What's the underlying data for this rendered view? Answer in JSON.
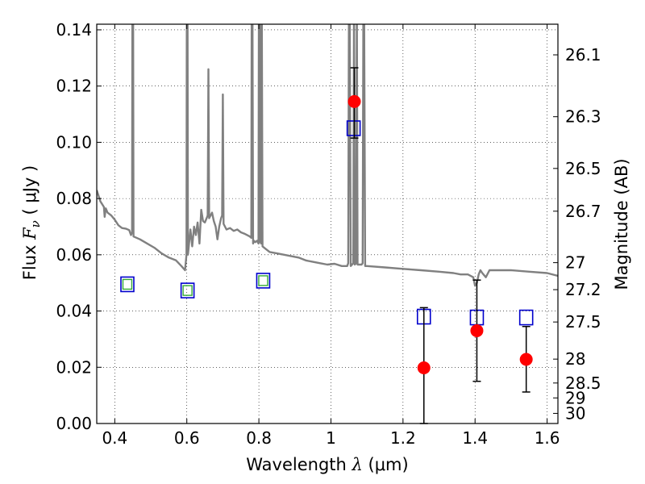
{
  "chart_data": {
    "type": "scatter",
    "title": "",
    "xlabel": {
      "prefix": "Wavelength  ",
      "symbol": "λ",
      "unit": " (μm)"
    },
    "ylabel": {
      "prefix": "Flux  ",
      "symbol": "F",
      "subscript": "ν",
      "unit": "  ( μJy )"
    },
    "y2label": "Magnitude (AB)",
    "xlim": [
      0.35,
      1.63
    ],
    "ylim": [
      0.0,
      0.142
    ],
    "grid": true,
    "x_ticks": [
      0.4,
      0.6,
      0.8,
      1.0,
      1.2,
      1.4,
      1.6
    ],
    "x_tick_labels": [
      "0.4",
      "0.6",
      "0.8",
      "1",
      "1.2",
      "1.4",
      "1.6"
    ],
    "y_ticks": [
      0.0,
      0.02,
      0.04,
      0.06,
      0.08,
      0.1,
      0.12,
      0.14
    ],
    "y_tick_labels": [
      "0.00",
      "0.02",
      "0.04",
      "0.06",
      "0.08",
      "0.10",
      "0.12",
      "0.14"
    ],
    "y2_ticks": [
      {
        "label": "26.1",
        "flux": 0.1311
      },
      {
        "label": "26.3",
        "flux": 0.1091
      },
      {
        "label": "26.5",
        "flux": 0.0907
      },
      {
        "label": "26.7",
        "flux": 0.0755
      },
      {
        "label": "27",
        "flux": 0.0572
      },
      {
        "label": "27.2",
        "flux": 0.0476
      },
      {
        "label": "27.5",
        "flux": 0.0361
      },
      {
        "label": "28",
        "flux": 0.0229
      },
      {
        "label": "28.5",
        "flux": 0.0144
      },
      {
        "label": "29",
        "flux": 0.0091
      },
      {
        "label": "30",
        "flux": 0.0036
      }
    ],
    "series": [
      {
        "kind": "line",
        "color": "#808080",
        "points": [
          [
            0.35,
            0.083
          ],
          [
            0.36,
            0.079
          ],
          [
            0.37,
            0.077
          ],
          [
            0.372,
            0.0735
          ],
          [
            0.375,
            0.0765
          ],
          [
            0.38,
            0.075
          ],
          [
            0.39,
            0.074
          ],
          [
            0.4,
            0.0725
          ],
          [
            0.41,
            0.0705
          ],
          [
            0.42,
            0.0695
          ],
          [
            0.43,
            0.0693
          ],
          [
            0.44,
            0.0688
          ],
          [
            0.445,
            0.067
          ],
          [
            0.448,
            0.068
          ],
          [
            0.449,
            0.15
          ],
          [
            0.451,
            0.15
          ],
          [
            0.452,
            0.0665
          ],
          [
            0.47,
            0.0655
          ],
          [
            0.49,
            0.064
          ],
          [
            0.51,
            0.0625
          ],
          [
            0.53,
            0.0605
          ],
          [
            0.55,
            0.059
          ],
          [
            0.57,
            0.058
          ],
          [
            0.585,
            0.056
          ],
          [
            0.595,
            0.0545
          ],
          [
            0.599,
            0.06
          ],
          [
            0.6,
            0.15
          ],
          [
            0.602,
            0.15
          ],
          [
            0.603,
            0.06
          ],
          [
            0.61,
            0.069
          ],
          [
            0.615,
            0.063
          ],
          [
            0.62,
            0.07
          ],
          [
            0.625,
            0.067
          ],
          [
            0.63,
            0.0715
          ],
          [
            0.635,
            0.064
          ],
          [
            0.64,
            0.076
          ],
          [
            0.645,
            0.072
          ],
          [
            0.65,
            0.0715
          ],
          [
            0.655,
            0.073
          ],
          [
            0.658,
            0.074
          ],
          [
            0.66,
            0.126
          ],
          [
            0.662,
            0.073
          ],
          [
            0.67,
            0.075
          ],
          [
            0.675,
            0.072
          ],
          [
            0.68,
            0.07
          ],
          [
            0.685,
            0.0655
          ],
          [
            0.69,
            0.07
          ],
          [
            0.695,
            0.073
          ],
          [
            0.698,
            0.074
          ],
          [
            0.7,
            0.117
          ],
          [
            0.702,
            0.071
          ],
          [
            0.71,
            0.069
          ],
          [
            0.72,
            0.0695
          ],
          [
            0.73,
            0.0685
          ],
          [
            0.74,
            0.069
          ],
          [
            0.75,
            0.068
          ],
          [
            0.76,
            0.0675
          ],
          [
            0.775,
            0.0665
          ],
          [
            0.779,
            0.066
          ],
          [
            0.78,
            0.15
          ],
          [
            0.782,
            0.15
          ],
          [
            0.784,
            0.064
          ],
          [
            0.786,
            0.065
          ],
          [
            0.79,
            0.0645
          ],
          [
            0.795,
            0.065
          ],
          [
            0.799,
            0.064
          ],
          [
            0.8,
            0.15
          ],
          [
            0.802,
            0.0645
          ],
          [
            0.804,
            0.15
          ],
          [
            0.806,
            0.064
          ],
          [
            0.808,
            0.15
          ],
          [
            0.81,
            0.063
          ],
          [
            0.82,
            0.062
          ],
          [
            0.83,
            0.061
          ],
          [
            0.85,
            0.0605
          ],
          [
            0.87,
            0.06
          ],
          [
            0.89,
            0.0595
          ],
          [
            0.91,
            0.059
          ],
          [
            0.93,
            0.058
          ],
          [
            0.95,
            0.0575
          ],
          [
            0.97,
            0.057
          ],
          [
            0.99,
            0.0565
          ],
          [
            1.01,
            0.0568
          ],
          [
            1.03,
            0.056
          ],
          [
            1.045,
            0.056
          ],
          [
            1.048,
            0.057
          ],
          [
            1.05,
            0.15
          ],
          [
            1.052,
            0.15
          ],
          [
            1.055,
            0.056
          ],
          [
            1.062,
            0.057
          ],
          [
            1.064,
            0.15
          ],
          [
            1.066,
            0.0565
          ],
          [
            1.07,
            0.057
          ],
          [
            1.072,
            0.15
          ],
          [
            1.074,
            0.0565
          ],
          [
            1.085,
            0.0565
          ],
          [
            1.088,
            0.057
          ],
          [
            1.09,
            0.15
          ],
          [
            1.092,
            0.15
          ],
          [
            1.095,
            0.056
          ],
          [
            1.1,
            0.056
          ],
          [
            1.15,
            0.0555
          ],
          [
            1.2,
            0.055
          ],
          [
            1.25,
            0.0545
          ],
          [
            1.3,
            0.054
          ],
          [
            1.34,
            0.0535
          ],
          [
            1.36,
            0.053
          ],
          [
            1.38,
            0.053
          ],
          [
            1.395,
            0.052
          ],
          [
            1.4,
            0.049
          ],
          [
            1.405,
            0.05
          ],
          [
            1.41,
            0.053
          ],
          [
            1.415,
            0.0545
          ],
          [
            1.42,
            0.0535
          ],
          [
            1.43,
            0.052
          ],
          [
            1.44,
            0.0545
          ],
          [
            1.5,
            0.0545
          ],
          [
            1.55,
            0.054
          ],
          [
            1.6,
            0.0535
          ],
          [
            1.63,
            0.0525
          ]
        ]
      },
      {
        "kind": "squares-blue",
        "color": "#0000cc",
        "points": [
          [
            0.435,
            0.0495
          ],
          [
            0.602,
            0.0473
          ],
          [
            0.812,
            0.0508
          ],
          [
            1.063,
            0.105
          ],
          [
            1.258,
            0.038
          ],
          [
            1.405,
            0.0377
          ],
          [
            1.542,
            0.0377
          ]
        ]
      },
      {
        "kind": "squares-green",
        "color": "#33aa33",
        "points": [
          [
            0.435,
            0.0495
          ],
          [
            0.602,
            0.0473
          ],
          [
            0.812,
            0.0508
          ]
        ]
      },
      {
        "kind": "points-red",
        "color": "#ff0000",
        "points": [
          [
            1.065,
            0.1145
          ],
          [
            1.258,
            0.0198
          ],
          [
            1.405,
            0.033
          ],
          [
            1.542,
            0.0228
          ]
        ],
        "yerr_low": [
          0.1015,
          0.0,
          0.015,
          0.0112
        ],
        "yerr_high": [
          0.1265,
          0.0412,
          0.051,
          0.0345
        ]
      }
    ]
  }
}
